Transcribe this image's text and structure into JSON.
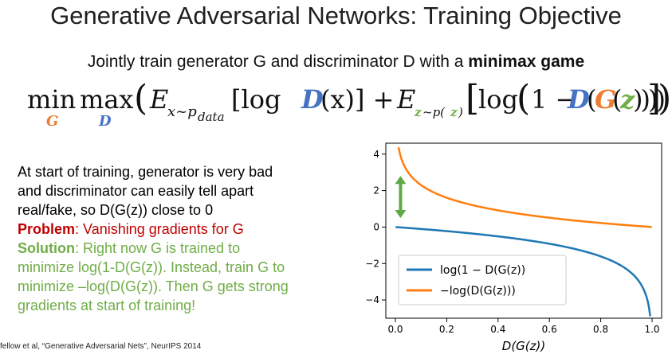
{
  "slide": {
    "title": "Generative Adversarial Networks: Training Objective",
    "subtitle_prefix": "Jointly train generator G and discriminator D with a ",
    "subtitle_bold": "minimax game",
    "formula": {
      "min": "min",
      "min_sub": "G",
      "max": "max",
      "max_sub": "D",
      "open_paren": "(",
      "e1": "E",
      "e1_sub": "x~p",
      "e1_subsub": "data",
      "term1_open": "[log ",
      "d1": "D",
      "term1_close": "(x)] + ",
      "e2": "E",
      "e2_sub_z": "z",
      "e2_sub_rest": "~p(",
      "e2_sub_z2": "z",
      "e2_sub_close": ")",
      "big_open": "[",
      "log2": "log",
      "paren2": "(",
      "one_minus": "1 − ",
      "d2": "D",
      "paren3": "(",
      "g": "G",
      "paren4": "(",
      "z": "z",
      "closing": "))))",
      "big_close": "])"
    },
    "body_lines": [
      "At start of training, generator is very bad",
      "and discriminator can easily tell apart",
      "real/fake, so D(G(z)) close to 0"
    ],
    "problem_label": "Problem",
    "problem_text": ": Vanishing gradients for G",
    "solution_label": "Solution",
    "solution_lines": [
      ": Right now G is trained to",
      "minimize log(1-D(G(z)). Instead, train G to",
      "minimize –log(D(G(z)). Then G gets strong",
      "gradients at start of training!"
    ],
    "citation": "fellow et al, “Generative Adversarial Nets”, NeurIPS 2014"
  },
  "chart_data": {
    "type": "line",
    "xlabel": "D(G(z))",
    "ylabel": "",
    "xlim": [
      0,
      1
    ],
    "ylim": [
      -5,
      4.6
    ],
    "x_ticks": [
      0.0,
      0.2,
      0.4,
      0.6,
      0.8,
      1.0
    ],
    "x_tick_labels": [
      "0.0",
      "0.2",
      "0.4",
      "0.6",
      "0.8",
      "1.0"
    ],
    "y_ticks": [
      4,
      2,
      0,
      -2,
      -4
    ],
    "y_tick_labels": [
      "4",
      "2",
      "0",
      "−2",
      "−4"
    ],
    "series": [
      {
        "name": "log(1 − D(G(z))",
        "color": "#1f77b4",
        "function": "log(1-x)"
      },
      {
        "name": "−log(D(G(z)))",
        "color": "#ff7f0e",
        "function": "-log(x)"
      }
    ],
    "legend": "bottom-left",
    "annotation": "green double-headed arrow between curves near x=0",
    "arrow_color": "#5fa845",
    "grid": false
  }
}
